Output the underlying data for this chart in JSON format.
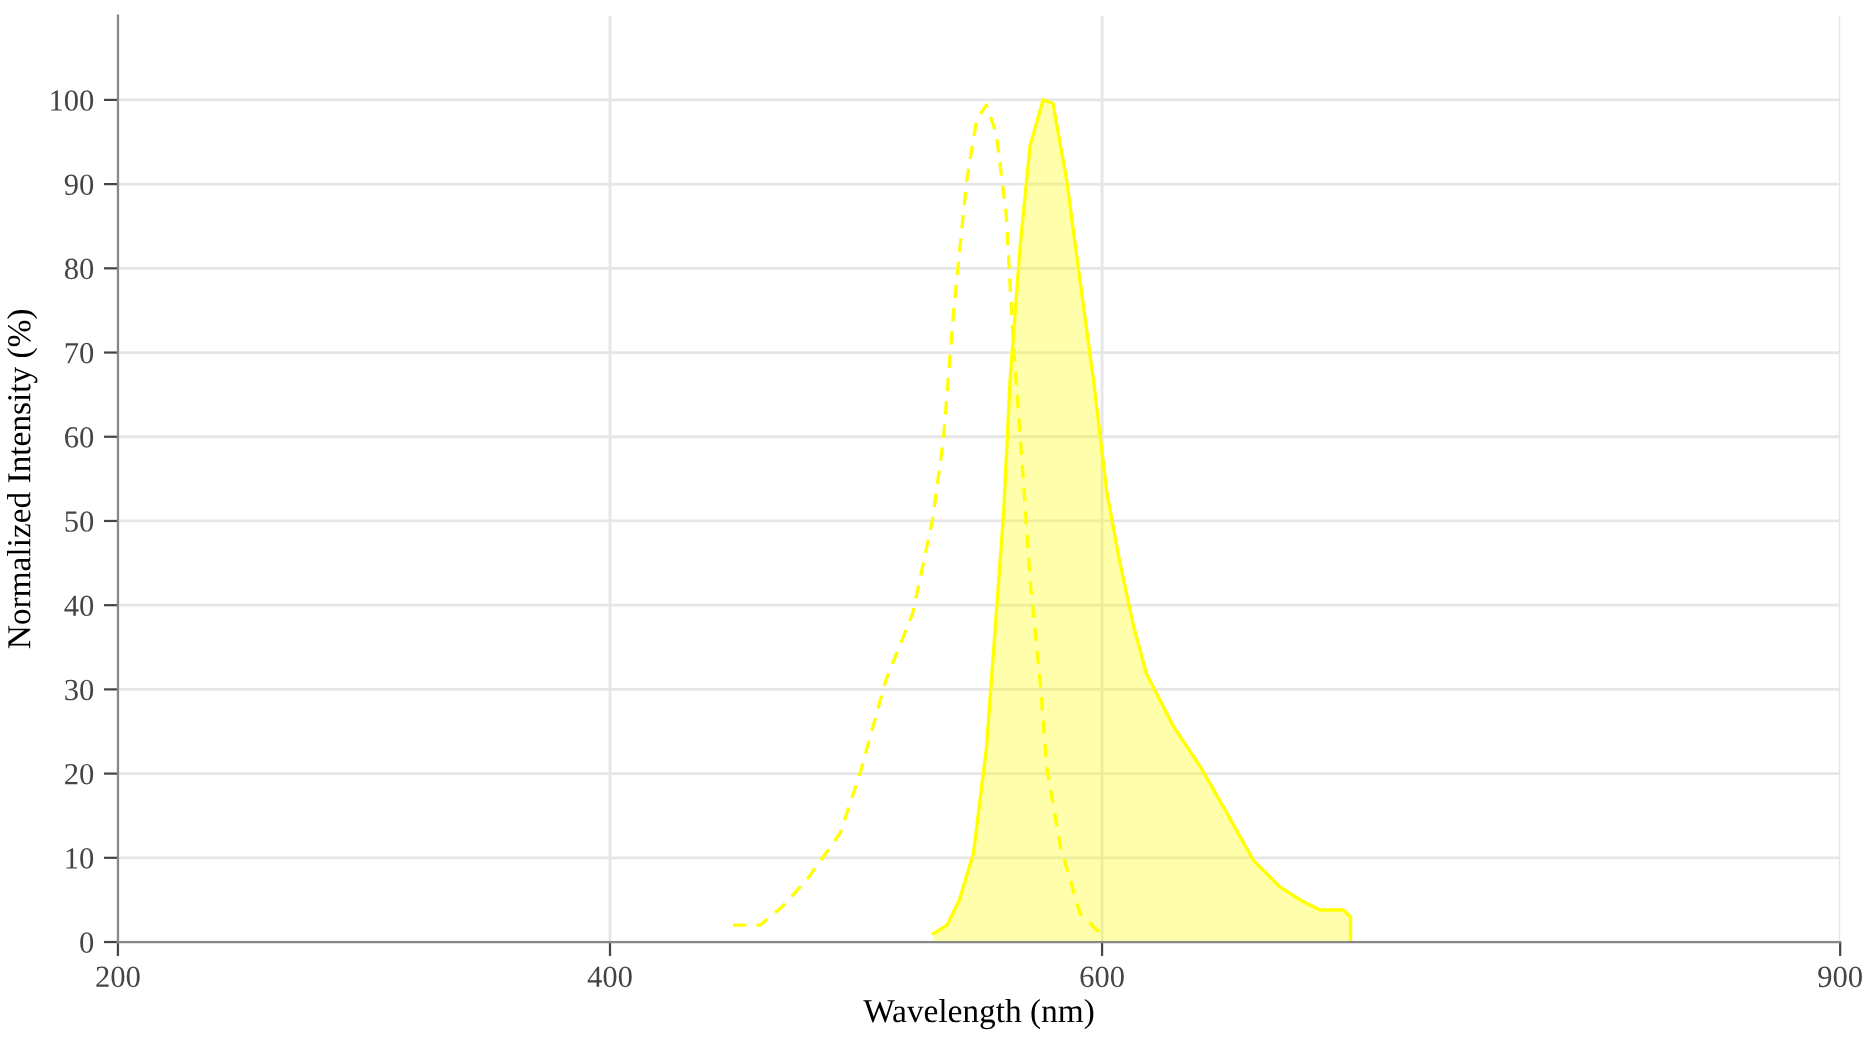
{
  "chart_data": {
    "type": "area",
    "xlabel": "Wavelength (nm)",
    "ylabel": "Normalized Intensity (%)",
    "xlim": [
      200,
      900
    ],
    "xticks": [
      200,
      400,
      600,
      900
    ],
    "ylim": [
      0,
      110
    ],
    "yticks": [
      0,
      10,
      20,
      30,
      40,
      50,
      60,
      70,
      80,
      90,
      100
    ],
    "grid": true,
    "series": [
      {
        "type": "line",
        "line_style": "dashed",
        "color": "#ffff00",
        "x": [
          450,
          461,
          470,
          480,
          493.5,
          501.6,
          512,
          523,
          531,
          535.5,
          539.6,
          545,
          549,
          553,
          557,
          561,
          564,
          568,
          570.7,
          574.8,
          577.5,
          583,
          591,
          600.5
        ],
        "values": [
          2,
          2,
          4.2,
          7.4,
          12.9,
          20,
          31,
          39,
          50,
          59.6,
          74.7,
          90.5,
          97.6,
          99.4,
          96,
          86.5,
          70.7,
          54.9,
          43,
          31,
          20.8,
          11.4,
          3.4,
          0.7
        ]
      },
      {
        "line_style": "solid",
        "color": "#ffff00",
        "x": [
          531.5,
          537,
          542,
          547.7,
          553,
          557,
          560,
          562.6,
          566.7,
          570.7,
          576,
          580,
          585.6,
          591,
          596.5,
          602,
          607,
          612.8,
          618,
          629,
          640,
          650.7,
          661.5,
          672,
          680.5,
          688.6,
          698,
          701,
          701
        ],
        "values": [
          1,
          2,
          5,
          10.5,
          23,
          39,
          51,
          66.7,
          82.6,
          94.5,
          100,
          99.6,
          90.5,
          78.6,
          66.7,
          53.3,
          45.4,
          37.5,
          31.9,
          25.6,
          20.8,
          15.3,
          9.7,
          6.6,
          5,
          3.8,
          3.8,
          3,
          0
        ]
      }
    ]
  }
}
